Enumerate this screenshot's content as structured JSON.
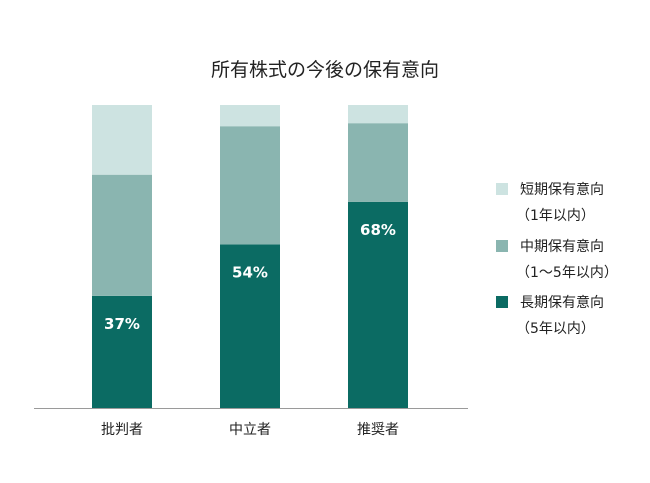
{
  "chart_data": {
    "type": "bar",
    "stacked": true,
    "title": "所有株式の今後の保有意向",
    "categories": [
      "批判者",
      "中立者",
      "推奨者"
    ],
    "ylim": [
      0,
      100
    ],
    "grid": false,
    "legend_position": "right",
    "series": [
      {
        "name_line1": "長期保有意向",
        "name_line2": "（5年以内）",
        "color": "#0b6b63",
        "values": [
          37,
          54,
          68
        ],
        "labels": [
          "37%",
          "54%",
          "68%"
        ]
      },
      {
        "name_line1": "中期保有意向",
        "name_line2": "（1～5年以内）",
        "color": "#8ab5b0",
        "values": [
          40,
          39,
          26
        ]
      },
      {
        "name_line1": "短期保有意向",
        "name_line2": "（1年以内）",
        "color": "#cde3e1",
        "values": [
          23,
          7,
          6
        ]
      }
    ]
  }
}
